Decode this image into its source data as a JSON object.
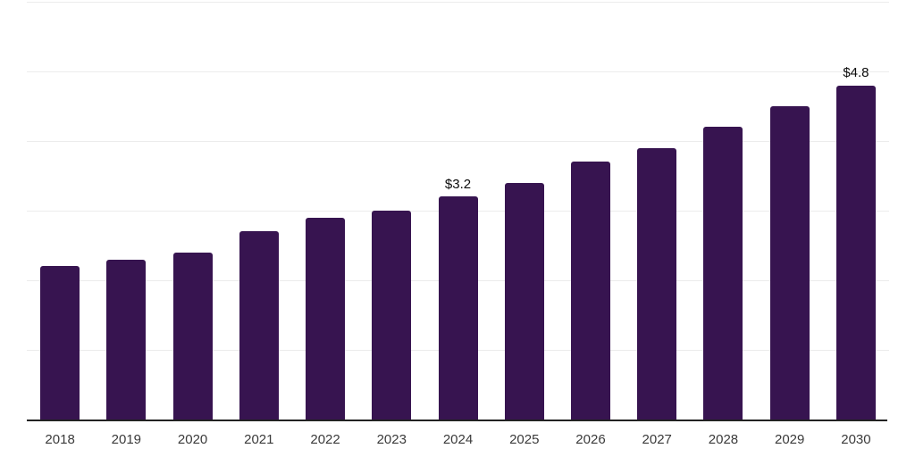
{
  "chart_data": {
    "type": "bar",
    "title": "",
    "xlabel": "",
    "ylabel": "",
    "categories": [
      "2018",
      "2019",
      "2020",
      "2021",
      "2022",
      "2023",
      "2024",
      "2025",
      "2026",
      "2027",
      "2028",
      "2029",
      "2030"
    ],
    "values": [
      2.2,
      2.3,
      2.4,
      2.7,
      2.9,
      3.0,
      3.2,
      3.4,
      3.7,
      3.9,
      4.2,
      4.5,
      4.8
    ],
    "data_labels": {
      "2024": "$3.2",
      "2030": "$4.8"
    },
    "ylim": [
      0,
      6
    ],
    "grid_step": 1,
    "grid": true,
    "legend": false,
    "colors": {
      "bar": "#371450",
      "axis": "#222222",
      "gridline": "#ececec",
      "tick_label": "#3a3a3a",
      "value_label": "#0a0a0a",
      "background": "#ffffff"
    }
  }
}
